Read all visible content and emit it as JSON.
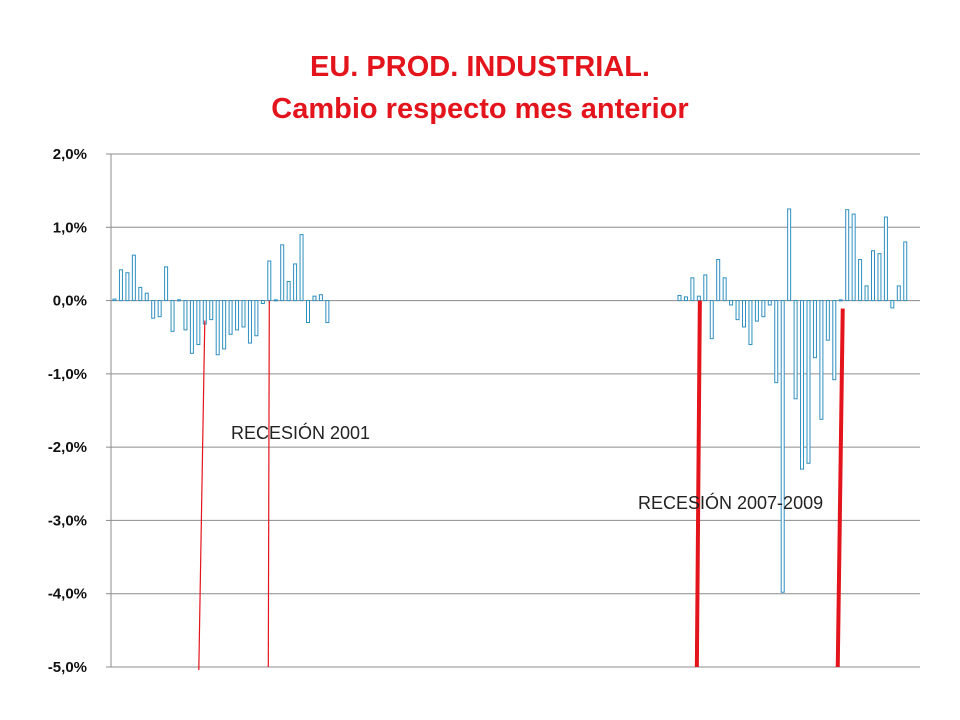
{
  "chart_data": {
    "type": "bar",
    "title": "EU. PROD. INDUSTRIAL.",
    "subtitle": "Cambio respecto mes anterior",
    "ylim": [
      -5.0,
      2.0
    ],
    "yticks": [
      "2,0%",
      "1,0%",
      "0,0%",
      "-1,0%",
      "-2,0%",
      "-3,0%",
      "-4,0%",
      "-5,0%"
    ],
    "ytick_values": [
      2,
      1,
      0,
      -1,
      -2,
      -3,
      -4,
      -5
    ],
    "grid": true,
    "series_color": "#2e8fc0",
    "segments": [
      {
        "name": "Recesión 2001",
        "values": [
          0.02,
          0.42,
          0.38,
          0.62,
          0.18,
          0.1,
          -0.24,
          -0.22,
          0.46,
          -0.42,
          0.01,
          -0.4,
          -0.72,
          -0.6,
          -0.32,
          -0.26,
          -0.74,
          -0.66,
          -0.46,
          -0.4,
          -0.36,
          -0.58,
          -0.48,
          -0.04,
          0.54,
          0.01,
          0.76,
          0.26,
          0.5,
          0.9,
          -0.3,
          0.06,
          0.08,
          -0.3
        ]
      },
      {
        "name": "Recesión 2007-2009",
        "values": [
          0.07,
          0.05,
          0.31,
          0.06,
          0.35,
          -0.52,
          0.56,
          0.31,
          -0.06,
          -0.26,
          -0.36,
          -0.6,
          -0.28,
          -0.22,
          -0.06,
          -1.12,
          -3.98,
          1.25,
          -1.34,
          -2.3,
          -2.22,
          -0.78,
          -1.62,
          -0.54,
          -1.08,
          0.01,
          1.24,
          1.18,
          0.56,
          0.2,
          0.68,
          0.64,
          1.14,
          -0.1,
          0.2,
          0.8
        ]
      }
    ],
    "annotations": [
      {
        "text": "RECESIÓN 2001"
      },
      {
        "text": "RECESIÓN 2007-2009"
      }
    ],
    "recession_marker_color": "#e3141b"
  }
}
